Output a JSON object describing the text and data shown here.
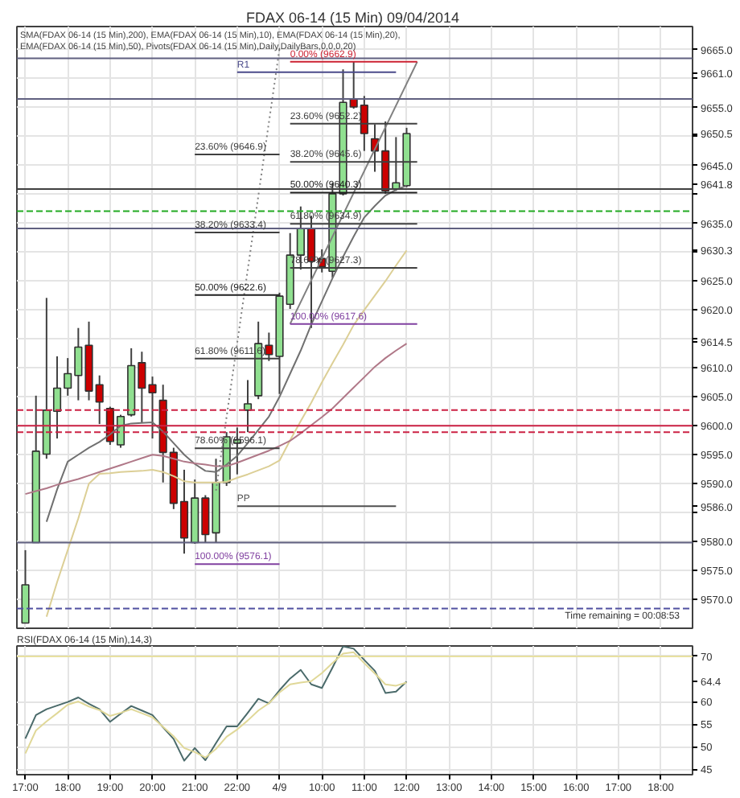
{
  "chart_data": [
    {
      "type": "candlestick",
      "title": "FDAX 06-14 (15 Min)  09/04/2014",
      "annotations": [
        "SMA(FDAX 06-14 (15 Min),200), EMA(FDAX 06-14 (15 Min),10), EMA(FDAX 06-14 (15 Min),20), EMA(FDAX 06-14 (15 Min),50), Pivots(FDAX 06-14 (15 Min),Daily,DailyBars,0,0,0,20)",
        "Time remaining = 00:08:53"
      ],
      "categories": [
        "17:00",
        null,
        null,
        null,
        "18:00",
        null,
        null,
        null,
        "19:00",
        null,
        null,
        null,
        "20:00",
        null,
        null,
        null,
        "21:00",
        null,
        null,
        null,
        "22:00",
        null,
        null,
        null,
        "4/9",
        null,
        null,
        null,
        "10:00",
        null,
        null,
        null,
        "11:00",
        null,
        null,
        null,
        "12:00",
        null,
        null,
        null,
        "13:00",
        null,
        null,
        null,
        "14:00",
        null,
        null,
        null,
        "15:00",
        null,
        null,
        null,
        "16:00",
        null,
        null,
        null,
        "17:00",
        null,
        null,
        null,
        "18:00",
        null,
        null,
        null
      ],
      "ohlc": [
        [
          9565.9,
          9578.5,
          9565.9,
          9572.5
        ],
        [
          9579.8,
          9605.2,
          9579.8,
          9595.6
        ],
        [
          9595.1,
          9622.1,
          9594.3,
          9602.7
        ],
        [
          9602.5,
          9612.0,
          9597.8,
          9606.5
        ],
        [
          9606.5,
          9611.7,
          9605.2,
          9609.0
        ],
        [
          9608.7,
          9616.9,
          9604.4,
          9613.6
        ],
        [
          9613.9,
          9618.0,
          9604.4,
          9606.0
        ],
        [
          9607.1,
          9608.7,
          9600.3,
          9604.1
        ],
        [
          9603.0,
          9603.3,
          9596.7,
          9597.3
        ],
        [
          9596.7,
          9601.9,
          9596.2,
          9601.6
        ],
        [
          9601.9,
          9613.4,
          9601.6,
          9610.4
        ],
        [
          9610.9,
          9612.8,
          9600.6,
          9606.5
        ],
        [
          9607.1,
          9608.5,
          9597.8,
          9605.7
        ],
        [
          9604.4,
          9607.1,
          9590.2,
          9595.4
        ],
        [
          9595.4,
          9596.2,
          9585.6,
          9586.6
        ],
        [
          9586.9,
          9592.4,
          9577.9,
          9580.6
        ],
        [
          9579.8,
          9590.7,
          9579.6,
          9587.5
        ],
        [
          9587.5,
          9588.0,
          9579.8,
          9581.2
        ],
        [
          9581.5,
          9594.3,
          9579.8,
          9590.2
        ],
        [
          9590.2,
          9598.9,
          9589.6,
          9598.1
        ],
        [
          9597.0,
          9599.7,
          9591.6,
          9597.6
        ],
        [
          9602.7,
          9607.9,
          9598.9,
          9603.8
        ],
        [
          9605.2,
          9618.0,
          9604.6,
          9614.2
        ],
        [
          9613.9,
          9616.1,
          9611.2,
          9612.3
        ],
        [
          9612.0,
          9623.0,
          9605.5,
          9622.4
        ],
        [
          9621.0,
          9633.3,
          9620.2,
          9629.5
        ],
        [
          9629.5,
          9637.9,
          9627.0,
          9634.1
        ],
        [
          9634.1,
          9636.3,
          9616.9,
          9628.4
        ],
        [
          9628.9,
          9630.5,
          9626.5,
          9627.5
        ],
        [
          9626.7,
          9642.0,
          9625.6,
          9640.1
        ],
        [
          9640.1,
          9661.6,
          9639.8,
          9655.9
        ],
        [
          9656.5,
          9662.9,
          9654.8,
          9655.1
        ],
        [
          9655.4,
          9657.0,
          9647.5,
          9650.5
        ],
        [
          9649.6,
          9652.1,
          9643.9,
          9647.5
        ],
        [
          9647.5,
          9652.6,
          9640.1,
          9640.6
        ],
        [
          9640.9,
          9649.9,
          9640.6,
          9642.0
        ],
        [
          9641.5,
          9651.5,
          9641.2,
          9650.5
        ],
        null,
        null,
        null,
        null,
        null,
        null,
        null,
        null,
        null,
        null,
        null,
        null,
        null,
        null,
        null,
        null,
        null,
        null,
        null,
        null,
        null,
        null,
        null,
        null,
        null,
        null,
        null
      ],
      "colors": [
        "#90e090",
        "#90e090",
        "#90e090",
        "#90e090",
        "#90e090",
        "#90e090",
        "#cc0000",
        "#cc0000",
        "#cc0000",
        "#90e090",
        "#90e090",
        "#cc0000",
        "#cc0000",
        "#cc0000",
        "#cc0000",
        "#cc0000",
        "#90e090",
        "#cc0000",
        "#90e090",
        "#90e090",
        "#90e090",
        "#90e090",
        "#90e090",
        "#cc0000",
        "#90e090",
        "#90e090",
        "#90e090",
        "#cc0000",
        "#cc0000",
        "#90e090",
        "#90e090",
        "#cc0000",
        "#cc0000",
        "#cc0000",
        "#cc0000",
        "#90e090",
        "#90e090",
        null,
        null,
        null,
        null,
        null,
        null,
        null,
        null,
        null,
        null,
        null,
        null,
        null,
        null,
        null,
        null,
        null,
        null,
        null,
        null,
        null,
        null,
        null,
        null,
        null,
        null,
        null
      ],
      "series": [
        {
          "type": "line",
          "color": "#707070",
          "values": [
            null,
            null,
            9583.4,
            9589.0,
            9593.8,
            9595.0,
            9596.2,
            9597.2,
            9598.5,
            9600.0,
            9600.4,
            9600.5,
            9600.6,
            9599.0,
            9597.0,
            9595.0,
            9593.4,
            9592.2,
            9592.0,
            9593.3,
            9594.8,
            9597.0,
            9599.3,
            9601.6,
            9605.0,
            9609.0,
            9613.0,
            9617.5,
            9621.5,
            9625.5,
            9629.2,
            9632.7,
            9636.0,
            9638.0,
            9639.8,
            9640.8,
            9641.5,
            null,
            null,
            null,
            null,
            null,
            null,
            null,
            null,
            null,
            null,
            null,
            null,
            null,
            null,
            null,
            null,
            null,
            null,
            null,
            null,
            null,
            null,
            null,
            null,
            null,
            null,
            null
          ]
        },
        {
          "type": "line",
          "color": "#dccf96",
          "values": [
            null,
            null,
            9567.0,
            9573.0,
            9578.5,
            9584.0,
            9590.0,
            9591.7,
            9591.8,
            9592.0,
            9592.1,
            9592.2,
            9592.4,
            9592.0,
            9591.3,
            9590.4,
            9590.2,
            9590.2,
            9590.2,
            9590.3,
            9591.0,
            9591.6,
            9592.3,
            9593.0,
            9594.0,
            9597.5,
            9600.8,
            9604.0,
            9607.5,
            9610.8,
            9614.0,
            9617.4,
            9620.0,
            9622.5,
            9625.0,
            9627.7,
            9630.3,
            null,
            null,
            null,
            null,
            null,
            null,
            null,
            null,
            null,
            null,
            null,
            null,
            null,
            null,
            null,
            null,
            null,
            null,
            null,
            null,
            null,
            null,
            null,
            null,
            null,
            null,
            null
          ]
        },
        {
          "type": "line",
          "color": "#b07888",
          "values": [
            9588.2,
            9588.7,
            9589.2,
            9589.8,
            9590.3,
            9590.8,
            9591.4,
            9592.0,
            9592.6,
            9593.2,
            9593.8,
            9594.4,
            9595.0,
            9594.8,
            9594.3,
            9593.8,
            9593.5,
            9593.3,
            9593.0,
            9593.0,
            9593.6,
            9594.3,
            9595.0,
            9595.7,
            9596.5,
            9597.4,
            9598.7,
            9600.1,
            9601.5,
            9603.0,
            9604.8,
            9606.6,
            9608.4,
            9610.2,
            9611.7,
            9613.0,
            9614.2,
            null,
            null,
            null,
            null,
            null,
            null,
            null,
            null,
            null,
            null,
            null,
            null,
            null,
            null,
            null,
            null,
            null,
            null,
            null,
            null,
            null,
            null,
            null,
            null,
            null,
            null,
            null
          ]
        },
        {
          "type": "line",
          "color": "#808080",
          "line_style": "dotted",
          "values": [
            null,
            null,
            null,
            null,
            null,
            null,
            null,
            null,
            null,
            null,
            null,
            null,
            null,
            null,
            null,
            null,
            null,
            null,
            9588.8,
            null,
            null,
            null,
            null,
            null,
            9665.2,
            null,
            null,
            null,
            null,
            null,
            null,
            null,
            null,
            null,
            null,
            null,
            null,
            null,
            null,
            null,
            null,
            null,
            null,
            null,
            null,
            null,
            null,
            null,
            null,
            null,
            null,
            null,
            null,
            null,
            null,
            null,
            null,
            null,
            null,
            null,
            null,
            null,
            null,
            null
          ]
        },
        {
          "type": "line",
          "color": "#808080",
          "values": [
            null,
            null,
            null,
            null,
            null,
            null,
            null,
            null,
            null,
            null,
            null,
            null,
            null,
            null,
            null,
            null,
            null,
            null,
            null,
            null,
            null,
            null,
            null,
            null,
            null,
            9617.6,
            null,
            null,
            null,
            null,
            null,
            null,
            null,
            null,
            null,
            null,
            null,
            9662.9,
            null,
            null,
            null,
            null,
            null,
            null,
            null,
            null,
            null,
            null,
            null,
            null,
            null,
            null,
            null,
            null,
            null,
            null,
            null,
            null,
            null,
            null,
            null,
            null,
            null,
            null
          ]
        },
        {
          "type": "line",
          "name": "R1",
          "color": "#4a4a8a",
          "values": [
            null,
            null,
            null,
            null,
            null,
            null,
            null,
            null,
            null,
            null,
            null,
            null,
            null,
            null,
            null,
            null,
            null,
            null,
            null,
            null,
            9661.1,
            null,
            null,
            null,
            null,
            null,
            null,
            null,
            null,
            null,
            null,
            null,
            null,
            null,
            null,
            9661.1,
            null,
            null,
            null,
            null,
            null,
            null,
            null,
            null,
            null,
            null,
            null,
            null,
            null,
            null,
            null,
            null,
            null,
            null,
            null,
            null,
            null,
            null,
            null,
            null,
            null,
            null,
            null,
            null
          ]
        },
        {
          "type": "line",
          "name": "PP",
          "color": "#505050",
          "values": [
            null,
            null,
            null,
            null,
            null,
            null,
            null,
            null,
            null,
            null,
            null,
            null,
            null,
            null,
            null,
            null,
            null,
            null,
            null,
            null,
            9586.1,
            null,
            null,
            null,
            null,
            null,
            null,
            null,
            null,
            null,
            null,
            null,
            null,
            null,
            null,
            9586.1,
            null,
            null,
            null,
            null,
            null,
            null,
            null,
            null,
            null,
            null,
            null,
            null,
            null,
            null,
            null,
            null,
            null,
            null,
            null,
            null,
            null,
            null,
            null,
            null,
            null,
            null,
            null,
            null
          ]
        },
        {
          "type": "line",
          "name": "23.60% (9646.9)",
          "color": "#404040",
          "values": [
            null,
            null,
            null,
            null,
            null,
            null,
            null,
            null,
            null,
            null,
            null,
            null,
            null,
            null,
            null,
            null,
            9646.9,
            null,
            null,
            null,
            null,
            null,
            null,
            null,
            9646.9,
            null,
            null,
            null,
            null,
            null,
            null,
            null,
            null,
            null,
            null,
            null,
            null,
            null,
            null,
            null,
            null,
            null,
            null,
            null,
            null,
            null,
            null,
            null,
            null,
            null,
            null,
            null,
            null,
            null,
            null,
            null,
            null,
            null,
            null,
            null,
            null,
            null,
            null,
            null
          ]
        },
        {
          "type": "line",
          "name": "38.20% (9633.4)",
          "color": "#404040",
          "values": [
            null,
            null,
            null,
            null,
            null,
            null,
            null,
            null,
            null,
            null,
            null,
            null,
            null,
            null,
            null,
            null,
            9633.4,
            null,
            null,
            null,
            null,
            null,
            null,
            null,
            9633.4,
            null,
            null,
            null,
            null,
            null,
            null,
            null,
            null,
            null,
            null,
            null,
            null,
            null,
            null,
            null,
            null,
            null,
            null,
            null,
            null,
            null,
            null,
            null,
            null,
            null,
            null,
            null,
            null,
            null,
            null,
            null,
            null,
            null,
            null,
            null,
            null,
            null,
            null,
            null
          ]
        },
        {
          "type": "line",
          "name": "50.00% (9622.6)",
          "color": "#202020",
          "values": [
            null,
            null,
            null,
            null,
            null,
            null,
            null,
            null,
            null,
            null,
            null,
            null,
            null,
            null,
            null,
            null,
            9622.6,
            null,
            null,
            null,
            null,
            null,
            null,
            null,
            9622.6,
            null,
            null,
            null,
            null,
            null,
            null,
            null,
            null,
            null,
            null,
            null,
            null,
            null,
            null,
            null,
            null,
            null,
            null,
            null,
            null,
            null,
            null,
            null,
            null,
            null,
            null,
            null,
            null,
            null,
            null,
            null,
            null,
            null,
            null,
            null,
            null,
            null,
            null,
            null
          ]
        },
        {
          "type": "line",
          "name": "61.80% (9611.6)",
          "color": "#404040",
          "values": [
            null,
            null,
            null,
            null,
            null,
            null,
            null,
            null,
            null,
            null,
            null,
            null,
            null,
            null,
            null,
            null,
            9611.6,
            null,
            null,
            null,
            null,
            null,
            null,
            null,
            9611.6,
            null,
            null,
            null,
            null,
            null,
            null,
            null,
            null,
            null,
            null,
            null,
            null,
            null,
            null,
            null,
            null,
            null,
            null,
            null,
            null,
            null,
            null,
            null,
            null,
            null,
            null,
            null,
            null,
            null,
            null,
            null,
            null,
            null,
            null,
            null,
            null,
            null,
            null,
            null
          ]
        },
        {
          "type": "line",
          "name": "78.60% (9596.1)",
          "color": "#404040",
          "values": [
            null,
            null,
            null,
            null,
            null,
            null,
            null,
            null,
            null,
            null,
            null,
            null,
            null,
            null,
            null,
            null,
            9596.1,
            null,
            null,
            null,
            null,
            null,
            null,
            null,
            9596.1,
            null,
            null,
            null,
            null,
            null,
            null,
            null,
            null,
            null,
            null,
            null,
            null,
            null,
            null,
            null,
            null,
            null,
            null,
            null,
            null,
            null,
            null,
            null,
            null,
            null,
            null,
            null,
            null,
            null,
            null,
            null,
            null,
            null,
            null,
            null,
            null,
            null,
            null,
            null
          ]
        },
        {
          "type": "line",
          "name": "100.00% (9576.1)",
          "color": "#8040a0",
          "values": [
            null,
            null,
            null,
            null,
            null,
            null,
            null,
            null,
            null,
            null,
            null,
            null,
            null,
            null,
            null,
            null,
            9576.1,
            null,
            null,
            null,
            null,
            null,
            null,
            null,
            9576.1,
            null,
            null,
            null,
            null,
            null,
            null,
            null,
            null,
            null,
            null,
            null,
            null,
            null,
            null,
            null,
            null,
            null,
            null,
            null,
            null,
            null,
            null,
            null,
            null,
            null,
            null,
            null,
            null,
            null,
            null,
            null,
            null,
            null,
            null,
            null,
            null,
            null,
            null,
            null
          ]
        },
        {
          "type": "line",
          "name": "0.00% (9662.9)",
          "color": "#cc2233",
          "values": [
            null,
            null,
            null,
            null,
            null,
            null,
            null,
            null,
            null,
            null,
            null,
            null,
            null,
            null,
            null,
            null,
            null,
            null,
            null,
            null,
            null,
            null,
            null,
            null,
            null,
            9662.9,
            null,
            null,
            null,
            null,
            null,
            null,
            null,
            null,
            null,
            null,
            null,
            9662.9,
            null,
            null,
            null,
            null,
            null,
            null,
            null,
            null,
            null,
            null,
            null,
            null,
            null,
            null,
            null,
            null,
            null,
            null,
            null,
            null,
            null,
            null,
            null,
            null,
            null,
            null
          ]
        },
        {
          "type": "line",
          "name": "23.60% (9652.2)",
          "color": "#404040",
          "values": [
            null,
            null,
            null,
            null,
            null,
            null,
            null,
            null,
            null,
            null,
            null,
            null,
            null,
            null,
            null,
            null,
            null,
            null,
            null,
            null,
            null,
            null,
            null,
            null,
            null,
            9652.2,
            null,
            null,
            null,
            null,
            null,
            null,
            null,
            null,
            null,
            null,
            null,
            9652.2,
            null,
            null,
            null,
            null,
            null,
            null,
            null,
            null,
            null,
            null,
            null,
            null,
            null,
            null,
            null,
            null,
            null,
            null,
            null,
            null,
            null,
            null,
            null,
            null,
            null,
            null
          ]
        },
        {
          "type": "line",
          "name": "38.20% (9645.6)",
          "color": "#404040",
          "values": [
            null,
            null,
            null,
            null,
            null,
            null,
            null,
            null,
            null,
            null,
            null,
            null,
            null,
            null,
            null,
            null,
            null,
            null,
            null,
            null,
            null,
            null,
            null,
            null,
            null,
            9645.6,
            null,
            null,
            null,
            null,
            null,
            null,
            null,
            null,
            null,
            null,
            null,
            9645.6,
            null,
            null,
            null,
            null,
            null,
            null,
            null,
            null,
            null,
            null,
            null,
            null,
            null,
            null,
            null,
            null,
            null,
            null,
            null,
            null,
            null,
            null,
            null,
            null,
            null,
            null
          ]
        },
        {
          "type": "line",
          "name": "50.00% (9640.3)",
          "color": "#202020",
          "values": [
            null,
            null,
            null,
            null,
            null,
            null,
            null,
            null,
            null,
            null,
            null,
            null,
            null,
            null,
            null,
            null,
            null,
            null,
            null,
            null,
            null,
            null,
            null,
            null,
            null,
            9640.3,
            null,
            null,
            null,
            null,
            null,
            null,
            null,
            null,
            null,
            null,
            null,
            9640.3,
            null,
            null,
            null,
            null,
            null,
            null,
            null,
            null,
            null,
            null,
            null,
            null,
            null,
            null,
            null,
            null,
            null,
            null,
            null,
            null,
            null,
            null,
            null,
            null,
            null,
            null
          ]
        },
        {
          "type": "line",
          "name": "61.80% (9634.9)",
          "color": "#404040",
          "values": [
            null,
            null,
            null,
            null,
            null,
            null,
            null,
            null,
            null,
            null,
            null,
            null,
            null,
            null,
            null,
            null,
            null,
            null,
            null,
            null,
            null,
            null,
            null,
            null,
            null,
            9634.9,
            null,
            null,
            null,
            null,
            null,
            null,
            null,
            null,
            null,
            null,
            null,
            9634.9,
            null,
            null,
            null,
            null,
            null,
            null,
            null,
            null,
            null,
            null,
            null,
            null,
            null,
            null,
            null,
            null,
            null,
            null,
            null,
            null,
            null,
            null,
            null,
            null,
            null,
            null
          ]
        },
        {
          "type": "line",
          "name": "78.60% (9627.3)",
          "color": "#404040",
          "values": [
            null,
            null,
            null,
            null,
            null,
            null,
            null,
            null,
            null,
            null,
            null,
            null,
            null,
            null,
            null,
            null,
            null,
            null,
            null,
            null,
            null,
            null,
            null,
            null,
            null,
            9627.3,
            null,
            null,
            null,
            null,
            null,
            null,
            null,
            null,
            null,
            null,
            null,
            9627.3,
            null,
            null,
            null,
            null,
            null,
            null,
            null,
            null,
            null,
            null,
            null,
            null,
            null,
            null,
            null,
            null,
            null,
            null,
            null,
            null,
            null,
            null,
            null,
            null,
            null,
            null
          ]
        },
        {
          "type": "line",
          "name": "100.00% (9617.6)",
          "color": "#8040a0",
          "values": [
            null,
            null,
            null,
            null,
            null,
            null,
            null,
            null,
            null,
            null,
            null,
            null,
            null,
            null,
            null,
            null,
            null,
            null,
            null,
            null,
            null,
            null,
            null,
            null,
            null,
            9617.6,
            null,
            null,
            null,
            null,
            null,
            null,
            null,
            null,
            null,
            null,
            null,
            9617.6,
            null,
            null,
            null,
            null,
            null,
            null,
            null,
            null,
            null,
            null,
            null,
            null,
            null,
            null,
            null,
            null,
            null,
            null,
            null,
            null,
            null,
            null,
            null,
            null,
            null,
            null
          ]
        }
      ],
      "ref_lines": [
        {
          "axis": "y",
          "value": 9663.5,
          "color": "#606080"
        },
        {
          "axis": "y",
          "value": 9656.5,
          "color": "#606080"
        },
        {
          "axis": "y",
          "value": 9640.9,
          "color": "#404040"
        },
        {
          "axis": "y",
          "value": 9637.1,
          "color": "#22aa22",
          "line_style": "dashed"
        },
        {
          "axis": "y",
          "value": 9634.1,
          "color": "#606080"
        },
        {
          "axis": "y",
          "value": 9602.7,
          "color": "#cc2244",
          "line_style": "dashed"
        },
        {
          "axis": "y",
          "value": 9600.0,
          "color": "#cc2244"
        },
        {
          "axis": "y",
          "value": 9598.9,
          "color": "#cc2244",
          "line_style": "dashed"
        },
        {
          "axis": "y",
          "value": 9579.8,
          "color": "#606080"
        },
        {
          "axis": "y",
          "value": 9568.4,
          "color": "#5050a0",
          "line_style": "dashed"
        }
      ],
      "ylim": [
        9565,
        9669
      ],
      "yticks": [
        {
          "value": 9665,
          "label": "9665.0"
        },
        {
          "value": 9660,
          "label": null
        },
        {
          "value": 9655,
          "label": "9655.0"
        },
        {
          "value": 9650,
          "label": null
        },
        {
          "value": 9645,
          "label": "9645.0"
        },
        {
          "value": 9640,
          "label": null
        },
        {
          "value": 9635,
          "label": "9635.0"
        },
        {
          "value": 9630,
          "label": null
        },
        {
          "value": 9625,
          "label": "9625.0"
        },
        {
          "value": 9620,
          "label": "9620.0"
        },
        {
          "value": 9615,
          "label": null
        },
        {
          "value": 9610,
          "label": "9610.0"
        },
        {
          "value": 9605,
          "label": "9605.0"
        },
        {
          "value": 9600,
          "label": "9600.0"
        },
        {
          "value": 9595,
          "label": "9595.0"
        },
        {
          "value": 9590,
          "label": "9590.0"
        },
        {
          "value": 9585,
          "label": null
        },
        {
          "value": 9580,
          "label": "9580.0"
        },
        {
          "value": 9575,
          "label": "9575.0"
        },
        {
          "value": 9570,
          "label": "9570.0"
        },
        {
          "value": 9661,
          "label": "9661.0"
        },
        {
          "value": 9650.5,
          "label": "9650.5"
        },
        {
          "value": 9641.8,
          "label": "9641.8"
        },
        {
          "value": 9630.3,
          "label": "9630.3"
        },
        {
          "value": 9614.5,
          "label": "9614.5"
        },
        {
          "value": 9586,
          "label": "9586.0"
        }
      ],
      "tick_labels": "y",
      "grid": true
    },
    {
      "type": "line",
      "title": "RSI(FDAX 06-14 (15 Min),14,3)",
      "categories": [
        "17:00",
        null,
        null,
        null,
        "18:00",
        null,
        null,
        null,
        "19:00",
        null,
        null,
        null,
        "20:00",
        null,
        null,
        null,
        "21:00",
        null,
        null,
        null,
        "22:00",
        null,
        null,
        null,
        "4/9",
        null,
        null,
        null,
        "10:00",
        null,
        null,
        null,
        "11:00",
        null,
        null,
        null,
        "12:00",
        null,
        null,
        null,
        "13:00",
        null,
        null,
        null,
        "14:00",
        null,
        null,
        null,
        "15:00",
        null,
        null,
        null,
        "16:00",
        null,
        null,
        null,
        "17:00",
        null,
        null,
        null,
        "18:00",
        null,
        null,
        null
      ],
      "series": [
        {
          "color": "#4a6a6a",
          "values": [
            51.8,
            57.0,
            58.3,
            59.1,
            59.9,
            60.9,
            59.5,
            58.3,
            55.5,
            57.3,
            59.0,
            58.0,
            57.0,
            54.3,
            51.7,
            46.9,
            49.7,
            47.0,
            50.8,
            54.5,
            54.5,
            57.5,
            60.6,
            59.6,
            62.5,
            65.1,
            67.0,
            63.8,
            63.0,
            67.5,
            72.2,
            71.7,
            69.2,
            66.8,
            61.9,
            62.2,
            64.4,
            null,
            null,
            null,
            null,
            null,
            null,
            null,
            null,
            null,
            null,
            null,
            null,
            null,
            null,
            null,
            null,
            null,
            null,
            null,
            null,
            null,
            null,
            null,
            null,
            null,
            null,
            null
          ]
        },
        {
          "color": "#e0d898",
          "values": [
            48.5,
            53.6,
            55.6,
            57.4,
            59.3,
            60.0,
            58.9,
            58.1,
            56.8,
            57.5,
            58.3,
            57.4,
            56.5,
            54.4,
            52.3,
            49.7,
            48.8,
            47.6,
            49.5,
            52.2,
            53.8,
            55.8,
            58.0,
            59.6,
            62.0,
            63.8,
            64.2,
            64.5,
            66.3,
            68.5,
            70.6,
            70.9,
            68.5,
            66.2,
            63.8,
            63.5,
            64.2,
            null,
            null,
            null,
            null,
            null,
            null,
            null,
            null,
            null,
            null,
            null,
            null,
            null,
            null,
            null,
            null,
            null,
            null,
            null,
            null,
            null,
            null,
            null,
            null,
            null,
            null,
            null
          ]
        }
      ],
      "ref_lines": [
        {
          "axis": "y",
          "value": 70,
          "color": "#e8e0a0"
        }
      ],
      "ylim": [
        43.8,
        72.3
      ],
      "yticks": [
        70,
        {
          "value": 64.4,
          "label": "64.4"
        },
        60,
        55,
        50,
        45
      ],
      "grid": true
    }
  ]
}
